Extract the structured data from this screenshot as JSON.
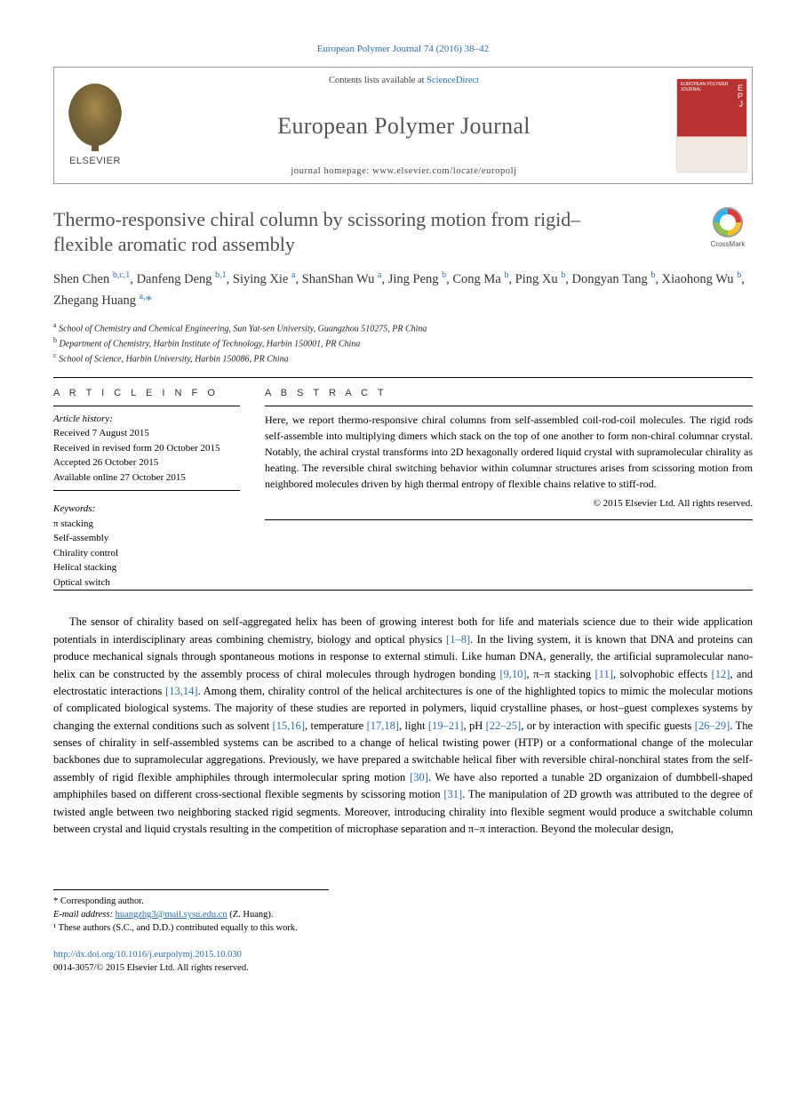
{
  "citation": "European Polymer Journal 74 (2016) 38–42",
  "header": {
    "contents_prefix": "Contents lists available at ",
    "contents_link": "ScienceDirect",
    "journal_name": "European Polymer Journal",
    "homepage": "journal homepage: www.elsevier.com/locate/europolj",
    "elsevier_label": "ELSEVIER",
    "cover_ep_e": "E",
    "cover_ep_p": "P",
    "cover_ep_j": "J",
    "cover_title": "EUROPEAN POLYMER JOURNAL"
  },
  "crossmark_label": "CrossMark",
  "title": "Thermo-responsive chiral column by scissoring motion from rigid–flexible aromatic rod assembly",
  "authors_html": "Shen Chen <sup>b,c,1</sup>, Danfeng Deng <sup>b,1</sup>, Siying Xie <sup>a</sup>, ShanShan Wu <sup>a</sup>, Jing Peng <sup>b</sup>, Cong Ma <sup>b</sup>, Ping Xu <sup>b</sup>, Dongyan Tang <sup>b</sup>, Xiaohong Wu <sup>b</sup>, Zhegang Huang <sup>a,</sup><span class='star'>*</span>",
  "affiliations": {
    "a": "School of Chemistry and Chemical Engineering, Sun Yat-sen University, Guangzhou 510275, PR China",
    "b": "Department of Chemistry, Harbin Institute of Technology, Harbin 150001, PR China",
    "c": "School of Science, Harbin University, Harbin 150086, PR China"
  },
  "article_info": {
    "head": "A R T I C L E   I N F O",
    "history_label": "Article history:",
    "received": "Received 7 August 2015",
    "revised": "Received in revised form 20 October 2015",
    "accepted": "Accepted 26 October 2015",
    "online": "Available online 27 October 2015",
    "keywords_label": "Keywords:",
    "kw1": "π stacking",
    "kw2": "Self-assembly",
    "kw3": "Chirality control",
    "kw4": "Helical stacking",
    "kw5": "Optical switch"
  },
  "abstract": {
    "head": "A B S T R A C T",
    "text": "Here, we report thermo-responsive chiral columns from self-assembled coil-rod-coil molecules. The rigid rods self-assemble into multiplying dimers which stack on the top of one another to form non-chiral columnar crystal. Notably, the achiral crystal transforms into 2D hexagonally ordered liquid crystal with supramolecular chirality as heating. The reversible chiral switching behavior within columnar structures arises from scissoring motion from neighbored molecules driven by high thermal entropy of flexible chains relative to stiff-rod.",
    "copyright": "© 2015 Elsevier Ltd. All rights reserved."
  },
  "body_para": "The sensor of chirality based on self-aggregated helix has been of growing interest both for life and materials science due to their wide application potentials in interdisciplinary areas combining chemistry, biology and optical physics [1–8]. In the living system, it is known that DNA and proteins can produce mechanical signals through spontaneous motions in response to external stimuli. Like human DNA, generally, the artificial supramolecular nano-helix can be constructed by the assembly process of chiral molecules through hydrogen bonding [9,10], π–π stacking [11], solvophobic effects [12], and electrostatic interactions [13,14]. Among them, chirality control of the helical architectures is one of the highlighted topics to mimic the molecular motions of complicated biological systems. The majority of these studies are reported in polymers, liquid crystalline phases, or host–guest complexes systems by changing the external conditions such as solvent [15,16], temperature [17,18], light [19–21], pH [22–25], or by interaction with specific guests [26–29]. The senses of chirality in self-assembled systems can be ascribed to a change of helical twisting power (HTP) or a conformational change of the molecular backbones due to supramolecular aggregations. Previously, we have prepared a switchable helical fiber with reversible chiral-nonchiral states from the self-assembly of rigid flexible amphiphiles through intermolecular spring motion [30]. We have also reported a tunable 2D organizaion of dumbbell-shaped amphiphiles based on different cross-sectional flexible segments by scissoring motion [31]. The manipulation of 2D growth was attributed to the degree of twisted angle between two neighboring stacked rigid segments. Moreover, introducing chirality into flexible segment would produce a switchable column between crystal and liquid crystals resulting in the competition of microphase separation and π–π interaction. Beyond the molecular design,",
  "refs": [
    "[1–8]",
    "[9,10]",
    "[11]",
    "[12]",
    "[13,14]",
    "[15,16]",
    "[17,18]",
    "[19–21]",
    "[22–25]",
    "[26–29]",
    "[30]",
    "[31]"
  ],
  "footnotes": {
    "corresponding": "* Corresponding author.",
    "email_label": "E-mail address: ",
    "email": "huangzhg3@mail.sysu.edu.cn",
    "email_suffix": " (Z. Huang).",
    "equal": "¹ These authors (S.C., and D.D.) contributed equally to this work."
  },
  "doi": {
    "url": "http://dx.doi.org/10.1016/j.eurpolymj.2015.10.030",
    "issn_line": "0014-3057/© 2015 Elsevier Ltd. All rights reserved."
  },
  "colors": {
    "link": "#2a6eb8",
    "cover_red": "#b83232",
    "title_gray": "#505050"
  }
}
